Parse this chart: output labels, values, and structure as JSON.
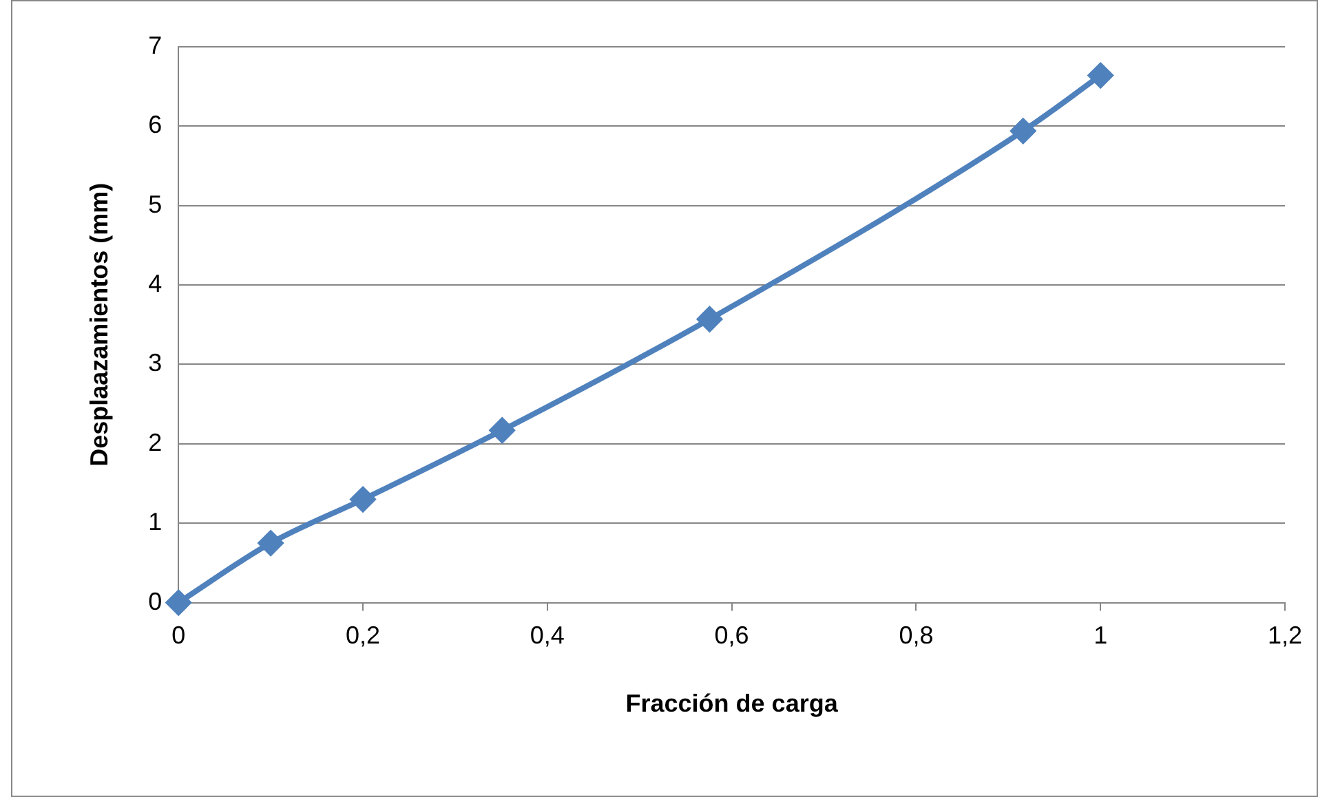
{
  "chart_data": {
    "type": "line",
    "xlabel": "Fracción de carga",
    "ylabel": "Desplaazamientos (mm)",
    "x": [
      0,
      0.1,
      0.2,
      0.351,
      0.576,
      0.916,
      1.0
    ],
    "series": [
      {
        "color": "#4f81bd",
        "values": [
          0,
          0.75,
          1.3,
          2.17,
          3.57,
          5.94,
          6.64
        ]
      }
    ],
    "xlim": [
      0,
      1.2
    ],
    "xticks": [
      0,
      {
        "value": 0.2,
        "label": "0,2"
      },
      {
        "value": 0.4,
        "label": "0,4"
      },
      {
        "value": 0.6,
        "label": "0,6"
      },
      {
        "value": 0.8,
        "label": "0,8"
      },
      1,
      {
        "value": 1.2,
        "label": "1,2"
      }
    ],
    "ylim": [
      0,
      7
    ],
    "yticks": [
      0,
      1,
      2,
      3,
      4,
      5,
      6,
      7
    ],
    "grid": "y",
    "legend": false,
    "marker": "diamond",
    "line_style": "solid"
  }
}
